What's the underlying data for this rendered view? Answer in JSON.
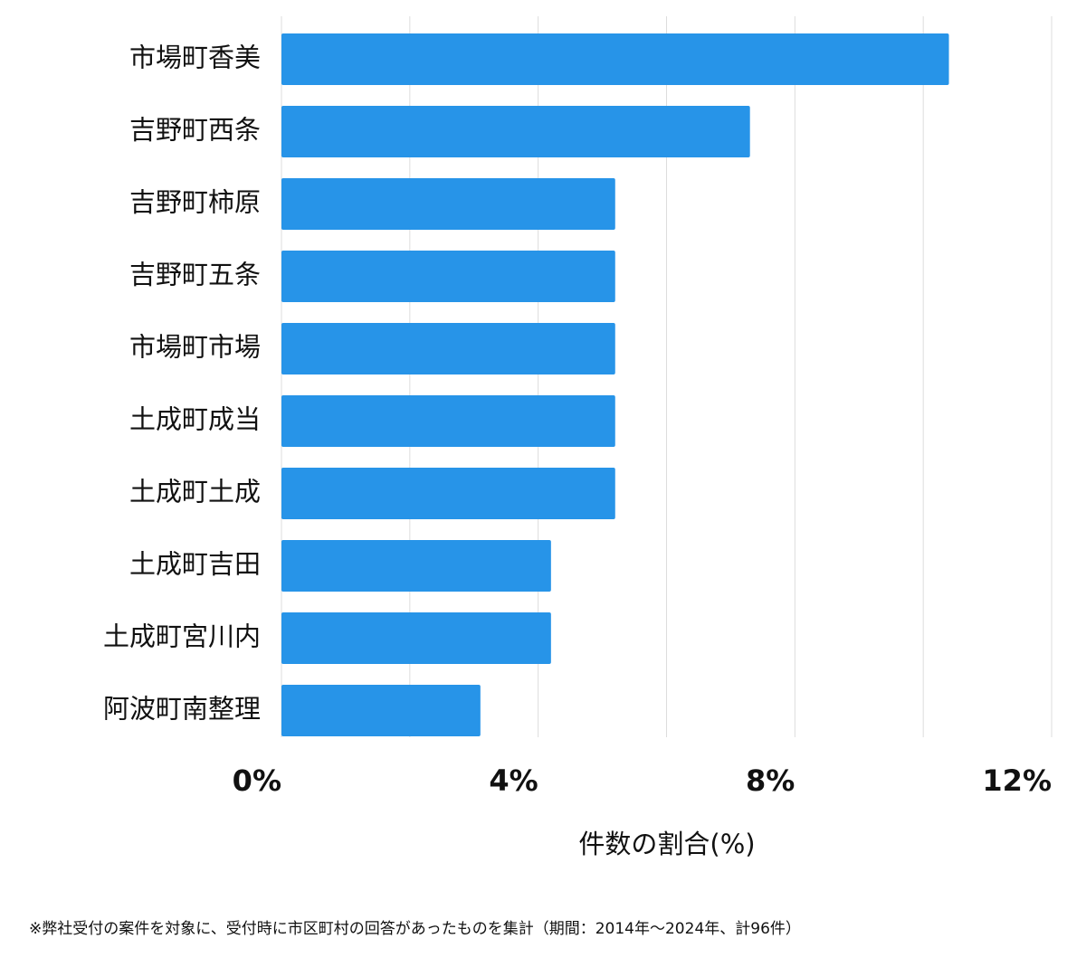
{
  "chart_data": {
    "type": "barh",
    "categories": [
      "市場町香美",
      "吉野町西条",
      "吉野町柿原",
      "吉野町五条",
      "市場町市場",
      "土成町成当",
      "土成町土成",
      "土成町吉田",
      "土成町宮川内",
      "阿波町南整理"
    ],
    "values": [
      10.4,
      7.3,
      5.2,
      5.2,
      5.2,
      5.2,
      5.2,
      4.2,
      4.2,
      3.1
    ],
    "color": "#2794e8",
    "xlim": [
      0,
      12
    ],
    "xticks": [
      {
        "value": 0,
        "label": "0%"
      },
      {
        "value": 4,
        "label": "4%"
      },
      {
        "value": 8,
        "label": "8%"
      },
      {
        "value": 12,
        "label": "12%"
      }
    ],
    "minor_gridlines": [
      2,
      6,
      10
    ],
    "grid": true,
    "xlabel": "件数の割合(%)",
    "note": "※弊社受付の案件を対象に、受付時に市区町村の回答があったものを集計（期間：2014年～2024年、計96件）"
  }
}
